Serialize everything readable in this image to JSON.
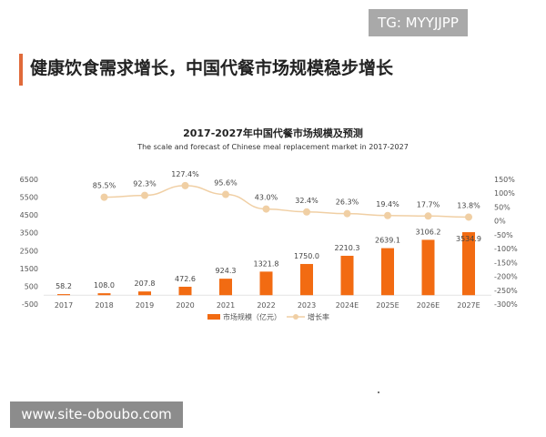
{
  "watermark_top": "TG: MYYJJPP",
  "watermark_bottom": "www.site-oboubo.com",
  "headline": "健康饮食需求增长，中国代餐市场规模稳步增长",
  "colors": {
    "accent": "#e06a3a",
    "bar": "#f26b12",
    "line": "#f0cfa4"
  },
  "chart_data": {
    "type": "bar+line",
    "title": "2017-2027年中国代餐市场规模及预测",
    "subtitle": "The scale and forecast of Chinese meal replacement market in 2017-2027",
    "categories": [
      "2017",
      "2018",
      "2019",
      "2020",
      "2021",
      "2022",
      "2023",
      "2024E",
      "2025E",
      "2026E",
      "2027E"
    ],
    "series": [
      {
        "name": "市场规模（亿元）",
        "type": "bar",
        "axis": "left",
        "values": [
          58.2,
          108.0,
          207.8,
          472.6,
          924.3,
          1321.8,
          1750.0,
          2210.3,
          2639.1,
          3106.2,
          3534.9
        ],
        "labels": [
          "58.2",
          "108.0",
          "207.8",
          "472.6",
          "924.3",
          "1321.8",
          "1750.0",
          "2210.3",
          "2639.1",
          "3106.2",
          "3534.9"
        ]
      },
      {
        "name": "增长率",
        "type": "line",
        "axis": "right",
        "values": [
          null,
          85.5,
          92.3,
          127.4,
          95.6,
          43.0,
          32.4,
          26.3,
          19.4,
          17.7,
          13.8
        ],
        "labels": [
          "",
          "85.5%",
          "92.3%",
          "127.4%",
          "95.6%",
          "43.0%",
          "32.4%",
          "26.3%",
          "19.4%",
          "17.7%",
          "13.8%"
        ]
      }
    ],
    "left_axis": {
      "ylim": [
        -500,
        6500
      ],
      "ticks": [
        "6500",
        "5500",
        "4500",
        "3500",
        "2500",
        "1500",
        "500",
        "-500"
      ]
    },
    "right_axis": {
      "ylim": [
        -300,
        150
      ],
      "ticks": [
        "150%",
        "100%",
        "50%",
        "0%",
        "-50%",
        "-100%",
        "-150%",
        "-200%",
        "-250%",
        "-300%"
      ]
    },
    "grid": false,
    "legend": "bottom"
  }
}
